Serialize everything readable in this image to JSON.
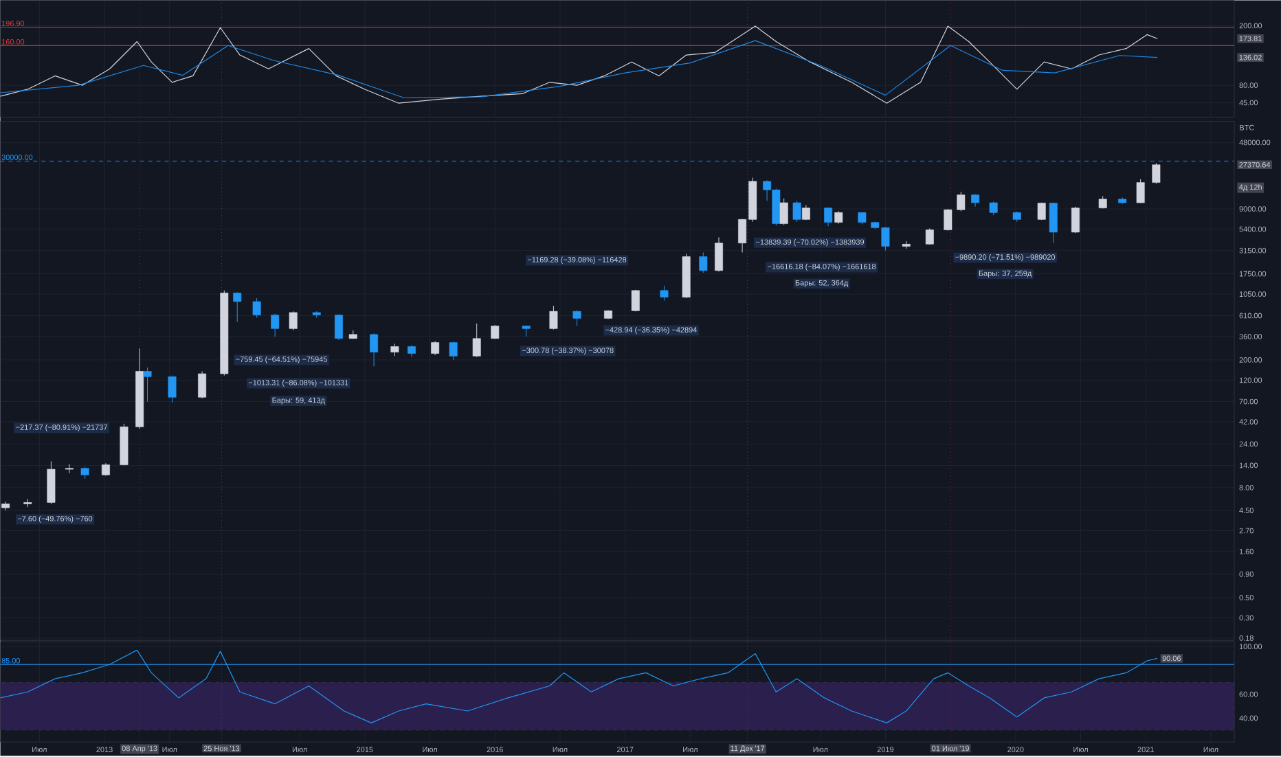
{
  "chart_data": [
    {
      "type": "line",
      "x": [
        2012.2,
        2012.41,
        2012.62,
        2012.83,
        2013.04,
        2013.25,
        2013.36,
        2013.52,
        2013.68,
        2013.89,
        2014.04,
        2014.26,
        2014.57,
        2014.78,
        2015.0,
        2015.26,
        2015.58,
        2015.89,
        2016.21,
        2016.42,
        2016.63,
        2016.84,
        2017.05,
        2017.26,
        2017.47,
        2017.69,
        2018.0,
        2018.16,
        2018.42,
        2018.74,
        2019.01,
        2019.27,
        2019.48,
        2019.64,
        2019.8,
        2020.01,
        2020.22,
        2020.43,
        2020.64,
        2020.85,
        2021.01,
        2021.09
      ],
      "series": [
        {
          "color": "#d1d4dc",
          "values": [
            58,
            72,
            99,
            80,
            113,
            168,
            127,
            86,
            99,
            196,
            141,
            113,
            154,
            99,
            72,
            44,
            52,
            58,
            63,
            86,
            80,
            99,
            127,
            99,
            141,
            146,
            199,
            168,
            127,
            86,
            44,
            86,
            199,
            168,
            127,
            72,
            127,
            113,
            141,
            154,
            182,
            173.81
          ]
        },
        {
          "color": "#1e88e5",
          "x": [
            2012.2,
            2012.8,
            2013.3,
            2013.6,
            2013.95,
            2014.3,
            2014.8,
            2015.3,
            2015.9,
            2016.5,
            2017.0,
            2017.5,
            2018.0,
            2018.5,
            2019.0,
            2019.5,
            2019.9,
            2020.3,
            2020.8,
            2021.09
          ],
          "values": [
            65,
            80,
            120,
            100,
            160,
            130,
            100,
            55,
            57,
            78,
            105,
            125,
            170,
            120,
            60,
            160,
            110,
            105,
            140,
            136.02
          ]
        }
      ],
      "xlim": [
        2012.2,
        2021.68
      ],
      "ylim": [
        16,
        251
      ],
      "xticks": [
        2012.5,
        2013,
        2013.5,
        2014.5,
        2015,
        2015.5,
        2016,
        2016.5,
        2017,
        2017.5,
        2018.5,
        2019,
        2020,
        2020.5,
        2021,
        2021.5
      ],
      "yticks": [
        {
          "value": 45,
          "label": "45.00"
        },
        {
          "value": 80,
          "label": "80.00"
        },
        {
          "value": 200,
          "label": "200.00"
        }
      ],
      "tick_labels": "y",
      "grid": true,
      "ref_lines": [
        {
          "axis": "y",
          "value": 196.9,
          "label": "196.90",
          "color": "#e53935"
        },
        {
          "axis": "y",
          "value": 160,
          "label": "160.00",
          "color": "#e53935"
        },
        {
          "axis": "x",
          "value": 2013.27,
          "color": "#8e2a3a",
          "line_style": "dotted"
        },
        {
          "axis": "x",
          "value": 2013.9,
          "color": "#8e2a3a",
          "line_style": "dotted"
        },
        {
          "axis": "x",
          "value": 2017.94,
          "color": "#8e2a3a",
          "line_style": "dotted"
        },
        {
          "axis": "x",
          "value": 2019.5,
          "color": "#8e2a3a",
          "line_style": "dotted"
        }
      ],
      "annotations": [
        "173.81",
        "136.02"
      ]
    },
    {
      "type": "candlestick",
      "x": [
        2012.24,
        2012.41,
        2012.59,
        2012.73,
        2012.85,
        2013.01,
        2013.15,
        2013.27,
        2013.33,
        2013.52,
        2013.75,
        2013.92,
        2014.02,
        2014.17,
        2014.31,
        2014.45,
        2014.63,
        2014.8,
        2014.91,
        2015.07,
        2015.23,
        2015.36,
        2015.54,
        2015.68,
        2015.86,
        2016.0,
        2016.24,
        2016.45,
        2016.63,
        2016.87,
        2017.08,
        2017.3,
        2017.47,
        2017.6,
        2017.72,
        2017.9,
        2017.98,
        2018.09,
        2018.16,
        2018.22,
        2018.32,
        2018.39,
        2018.56,
        2018.64,
        2018.82,
        2018.92,
        2019.0,
        2019.16,
        2019.34,
        2019.48,
        2019.58,
        2019.69,
        2019.83,
        2020.01,
        2020.2,
        2020.29,
        2020.46,
        2020.67,
        2020.82,
        2020.96,
        2021.08
      ],
      "ohlc": [
        [
          4.8,
          5.6,
          4.5,
          5.3
        ],
        [
          5.3,
          6.0,
          4.9,
          5.5
        ],
        [
          5.5,
          15.5,
          5.3,
          12.7
        ],
        [
          12.7,
          14.5,
          11.5,
          13
        ],
        [
          13,
          13.5,
          10,
          11
        ],
        [
          11,
          14.8,
          10.8,
          14.2
        ],
        [
          14.2,
          40,
          14,
          37
        ],
        [
          37,
          266,
          35,
          150
        ],
        [
          150,
          165,
          70,
          131
        ],
        [
          131,
          135,
          68,
          78
        ],
        [
          78,
          150,
          76,
          141
        ],
        [
          141,
          1150,
          135,
          1080
        ],
        [
          1080,
          1100,
          520,
          870
        ],
        [
          870,
          950,
          580,
          620
        ],
        [
          620,
          640,
          360,
          440
        ],
        [
          440,
          680,
          420,
          660
        ],
        [
          660,
          680,
          580,
          620
        ],
        [
          620,
          630,
          330,
          343
        ],
        [
          343,
          420,
          340,
          380
        ],
        [
          380,
          390,
          170,
          243
        ],
        [
          243,
          300,
          220,
          280
        ],
        [
          280,
          290,
          215,
          235
        ],
        [
          235,
          320,
          225,
          310
        ],
        [
          310,
          315,
          200,
          220
        ],
        [
          220,
          500,
          215,
          343
        ],
        [
          343,
          480,
          340,
          470
        ],
        [
          470,
          475,
          360,
          440
        ],
        [
          440,
          780,
          430,
          680
        ],
        [
          680,
          700,
          470,
          570
        ],
        [
          570,
          700,
          560,
          690
        ],
        [
          690,
          1170,
          680,
          1150
        ],
        [
          1150,
          1300,
          890,
          970
        ],
        [
          970,
          2900,
          950,
          2700
        ],
        [
          2700,
          3000,
          1800,
          1900
        ],
        [
          1900,
          4400,
          1850,
          3800
        ],
        [
          3800,
          7000,
          3000,
          6900
        ],
        [
          6900,
          19800,
          6500,
          18000
        ],
        [
          18000,
          18500,
          11000,
          14500
        ],
        [
          14500,
          15000,
          5900,
          6200
        ],
        [
          6200,
          11700,
          6000,
          10500
        ],
        [
          10500,
          11000,
          6500,
          6900
        ],
        [
          6900,
          9900,
          6800,
          9200
        ],
        [
          9200,
          9300,
          5800,
          6400
        ],
        [
          6400,
          8500,
          6200,
          8200
        ],
        [
          8200,
          8300,
          6100,
          6400
        ],
        [
          6400,
          6500,
          5400,
          5600
        ],
        [
          5600,
          5700,
          3150,
          3500
        ],
        [
          3500,
          4000,
          3300,
          3700
        ],
        [
          3700,
          5500,
          3650,
          5300
        ],
        [
          5300,
          9000,
          5200,
          8800
        ],
        [
          8800,
          13800,
          8500,
          12800
        ],
        [
          12800,
          13000,
          9500,
          10500
        ],
        [
          10500,
          10800,
          7700,
          8200
        ],
        [
          8200,
          8400,
          6500,
          6900
        ],
        [
          6900,
          10500,
          6800,
          10400
        ],
        [
          10400,
          10500,
          3800,
          5000
        ],
        [
          5000,
          9500,
          4900,
          9200
        ],
        [
          9200,
          12400,
          9100,
          11500
        ],
        [
          11500,
          12000,
          10200,
          10500
        ],
        [
          10500,
          19000,
          10400,
          17500
        ],
        [
          17500,
          28500,
          17000,
          27370.64
        ]
      ],
      "colors": [
        "#d1d4dc",
        "#d1d4dc",
        "#d1d4dc",
        "#d1d4dc",
        "#2196f3",
        "#d1d4dc",
        "#d1d4dc",
        "#d1d4dc",
        "#2196f3",
        "#2196f3",
        "#d1d4dc",
        "#d1d4dc",
        "#2196f3",
        "#2196f3",
        "#2196f3",
        "#d1d4dc",
        "#2196f3",
        "#2196f3",
        "#d1d4dc",
        "#2196f3",
        "#d1d4dc",
        "#2196f3",
        "#d1d4dc",
        "#2196f3",
        "#d1d4dc",
        "#d1d4dc",
        "#2196f3",
        "#d1d4dc",
        "#2196f3",
        "#d1d4dc",
        "#d1d4dc",
        "#2196f3",
        "#d1d4dc",
        "#2196f3",
        "#d1d4dc",
        "#d1d4dc",
        "#d1d4dc",
        "#2196f3",
        "#2196f3",
        "#d1d4dc",
        "#2196f3",
        "#d1d4dc",
        "#2196f3",
        "#d1d4dc",
        "#2196f3",
        "#2196f3",
        "#2196f3",
        "#d1d4dc",
        "#d1d4dc",
        "#d1d4dc",
        "#d1d4dc",
        "#2196f3",
        "#2196f3",
        "#2196f3",
        "#d1d4dc",
        "#2196f3",
        "#d1d4dc",
        "#d1d4dc",
        "#2196f3",
        "#d1d4dc",
        "#d1d4dc"
      ],
      "xlim": [
        2012.2,
        2021.68
      ],
      "ylim": [
        0.17,
        82000
      ],
      "log": true,
      "xticks": [
        2012.5,
        2013,
        2013.5,
        2014.5,
        2015,
        2015.5,
        2016,
        2016.5,
        2017,
        2017.5,
        2018.5,
        2019,
        2020,
        2020.5,
        2021,
        2021.5
      ],
      "yticks": [
        {
          "value": 0.18,
          "label": "0.18"
        },
        {
          "value": 0.3,
          "label": "0.30"
        },
        {
          "value": 0.5,
          "label": "0.50"
        },
        {
          "value": 0.9,
          "label": "0.90"
        },
        {
          "value": 1.6,
          "label": "1.60"
        },
        {
          "value": 2.7,
          "label": "2.70"
        },
        {
          "value": 4.5,
          "label": "4.50"
        },
        {
          "value": 8,
          "label": "8.00"
        },
        {
          "value": 14,
          "label": "14.00"
        },
        {
          "value": 24,
          "label": "24.00"
        },
        {
          "value": 42,
          "label": "42.00"
        },
        {
          "value": 70,
          "label": "70.00"
        },
        {
          "value": 120,
          "label": "120.00"
        },
        {
          "value": 200,
          "label": "200.00"
        },
        {
          "value": 360,
          "label": "360.00"
        },
        {
          "value": 610,
          "label": "610.00"
        },
        {
          "value": 1050,
          "label": "1050.00"
        },
        {
          "value": 1750,
          "label": "1750.00"
        },
        {
          "value": 3150,
          "label": "3150.00"
        },
        {
          "value": 5400,
          "label": "5400.00"
        },
        {
          "value": 9000,
          "label": "9000.00"
        },
        {
          "value": 48000,
          "label": "48000.00"
        }
      ],
      "ylabel": "BTC",
      "tick_labels": "y",
      "grid": true,
      "ref_lines": [
        {
          "axis": "y",
          "value": 30000,
          "label": "30000.00",
          "color": "#2196f3",
          "line_style": "dashed"
        },
        {
          "axis": "x",
          "value": 2013.27,
          "color": "#8e2a3a",
          "line_style": "dotted"
        },
        {
          "axis": "x",
          "value": 2013.9,
          "color": "#8e2a3a",
          "line_style": "dotted"
        },
        {
          "axis": "x",
          "value": 2017.94,
          "color": "#8e2a3a",
          "line_style": "dotted"
        },
        {
          "axis": "x",
          "value": 2019.5,
          "color": "#8e2a3a",
          "line_style": "dotted"
        }
      ],
      "annotations": [
        "−7.60 (−49.76%) −760",
        "−217.37 (−80.91%) −21737",
        "−759.45 (−64.51%) −75945",
        "−1013.31 (−86.08%) −101331",
        "Бары: 59, 413д",
        "−300.78 (−38.37%) −30078",
        "−428.94 (−36.35%) −42894",
        "−1169.28 (−39.08%) −116428",
        "−13839.39 (−70.02%) −1383939",
        "−16616.18 (−84.07%) −1661618",
        "Бары: 52, 364д",
        "−9890.20 (−71.51%) −989020",
        "Бары: 37, 259д",
        "27370.64",
        "4д 12h"
      ]
    },
    {
      "type": "line",
      "x": [
        2012.2,
        2012.41,
        2012.62,
        2012.83,
        2013.04,
        2013.25,
        2013.36,
        2013.57,
        2013.78,
        2013.89,
        2014.04,
        2014.31,
        2014.57,
        2014.84,
        2015.05,
        2015.26,
        2015.47,
        2015.79,
        2016.1,
        2016.42,
        2016.53,
        2016.74,
        2016.95,
        2017.16,
        2017.37,
        2017.58,
        2017.79,
        2018.0,
        2018.16,
        2018.32,
        2018.53,
        2018.74,
        2019.01,
        2019.16,
        2019.37,
        2019.48,
        2019.64,
        2019.8,
        2020.01,
        2020.22,
        2020.43,
        2020.64,
        2020.85,
        2021.01,
        2021.09
      ],
      "series": [
        {
          "color": "#2196f3",
          "values": [
            57,
            62,
            73,
            78,
            85,
            97,
            78,
            57,
            73,
            96,
            62,
            52,
            67,
            46,
            36,
            46,
            52,
            46,
            57,
            67,
            78,
            62,
            73,
            78,
            67,
            73,
            78,
            94,
            62,
            73,
            57,
            46,
            36,
            46,
            73,
            78,
            67,
            57,
            41,
            57,
            62,
            73,
            78,
            88,
            90.06
          ]
        }
      ],
      "xlim": [
        2012.2,
        2021.68
      ],
      "ylim": [
        20,
        104
      ],
      "xticks": [
        {
          "value": 2012.5,
          "label": "Июл"
        },
        2013,
        {
          "value": 2013.5,
          "label": "Июл"
        },
        {
          "value": 2014.5,
          "label": "Июл"
        },
        2015,
        {
          "value": 2015.5,
          "label": "Июл"
        },
        2016,
        {
          "value": 2016.5,
          "label": "Июл"
        },
        2017,
        {
          "value": 2017.5,
          "label": "Июл"
        },
        {
          "value": 2018.5,
          "label": "Июл"
        },
        2019,
        2020,
        {
          "value": 2020.5,
          "label": "Июл"
        },
        2021,
        {
          "value": 2021.5,
          "label": "Июл"
        }
      ],
      "yticks": [
        {
          "value": 40,
          "label": "40.00"
        },
        {
          "value": 60,
          "label": "60.00"
        },
        {
          "value": 100,
          "label": "100.00"
        }
      ],
      "grid": true,
      "bands": [
        {
          "axis": "y",
          "from": 30,
          "to": 70,
          "color": "#2a1f4d"
        }
      ],
      "ref_lines": [
        {
          "axis": "y",
          "value": 85,
          "label": "85.00",
          "color": "#2196f3"
        },
        {
          "axis": "x",
          "value": 2013.27,
          "label": "08 Апр '13",
          "color": "#8e2a3a",
          "line_style": "dotted"
        },
        {
          "axis": "x",
          "value": 2013.9,
          "label": "25 Ноя '13",
          "color": "#8e2a3a",
          "line_style": "dotted"
        },
        {
          "axis": "x",
          "value": 2017.94,
          "label": "11 Дек '17",
          "color": "#8e2a3a",
          "line_style": "dotted"
        },
        {
          "axis": "x",
          "value": 2019.5,
          "label": "01 Июл '19",
          "color": "#8e2a3a",
          "line_style": "dotted"
        }
      ],
      "annotations": [
        "90.06"
      ]
    }
  ]
}
